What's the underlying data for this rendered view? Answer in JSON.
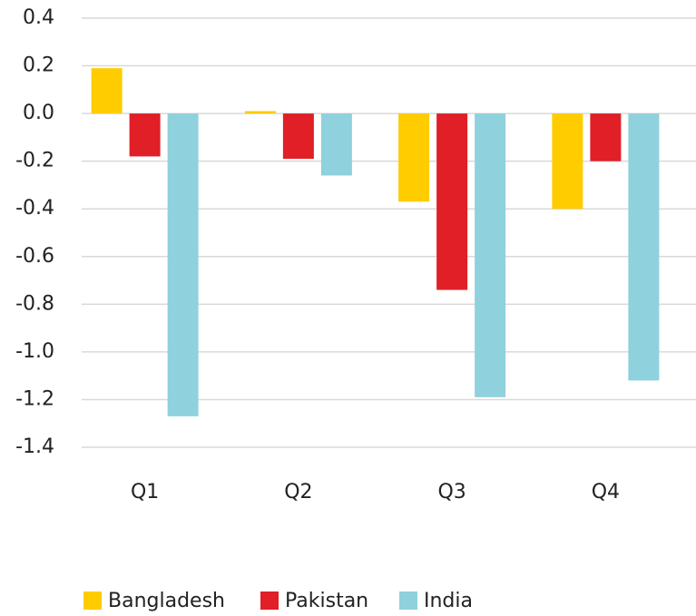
{
  "chart_data": {
    "type": "bar",
    "categories": [
      "Q1",
      "Q2",
      "Q3",
      "Q4"
    ],
    "series": [
      {
        "name": "Bangladesh",
        "color": "#ffcc00",
        "values": [
          0.19,
          0.01,
          -0.37,
          -0.4
        ]
      },
      {
        "name": "Pakistan",
        "color": "#e01f26",
        "values": [
          -0.18,
          -0.19,
          -0.74,
          -0.2
        ]
      },
      {
        "name": "India",
        "color": "#8fd1dc",
        "values": [
          -1.27,
          -0.26,
          -1.19,
          -1.12
        ]
      }
    ],
    "ylim": [
      -1.4,
      0.4
    ],
    "yticks": [
      0.4,
      0.2,
      {
        "value": 0,
        "label": "0.0"
      },
      -0.2,
      -0.4,
      -0.6,
      -0.8,
      {
        "value": -1,
        "label": "-1.0"
      },
      -1.2,
      -1.4
    ],
    "grid": true,
    "legend": "bottom"
  }
}
